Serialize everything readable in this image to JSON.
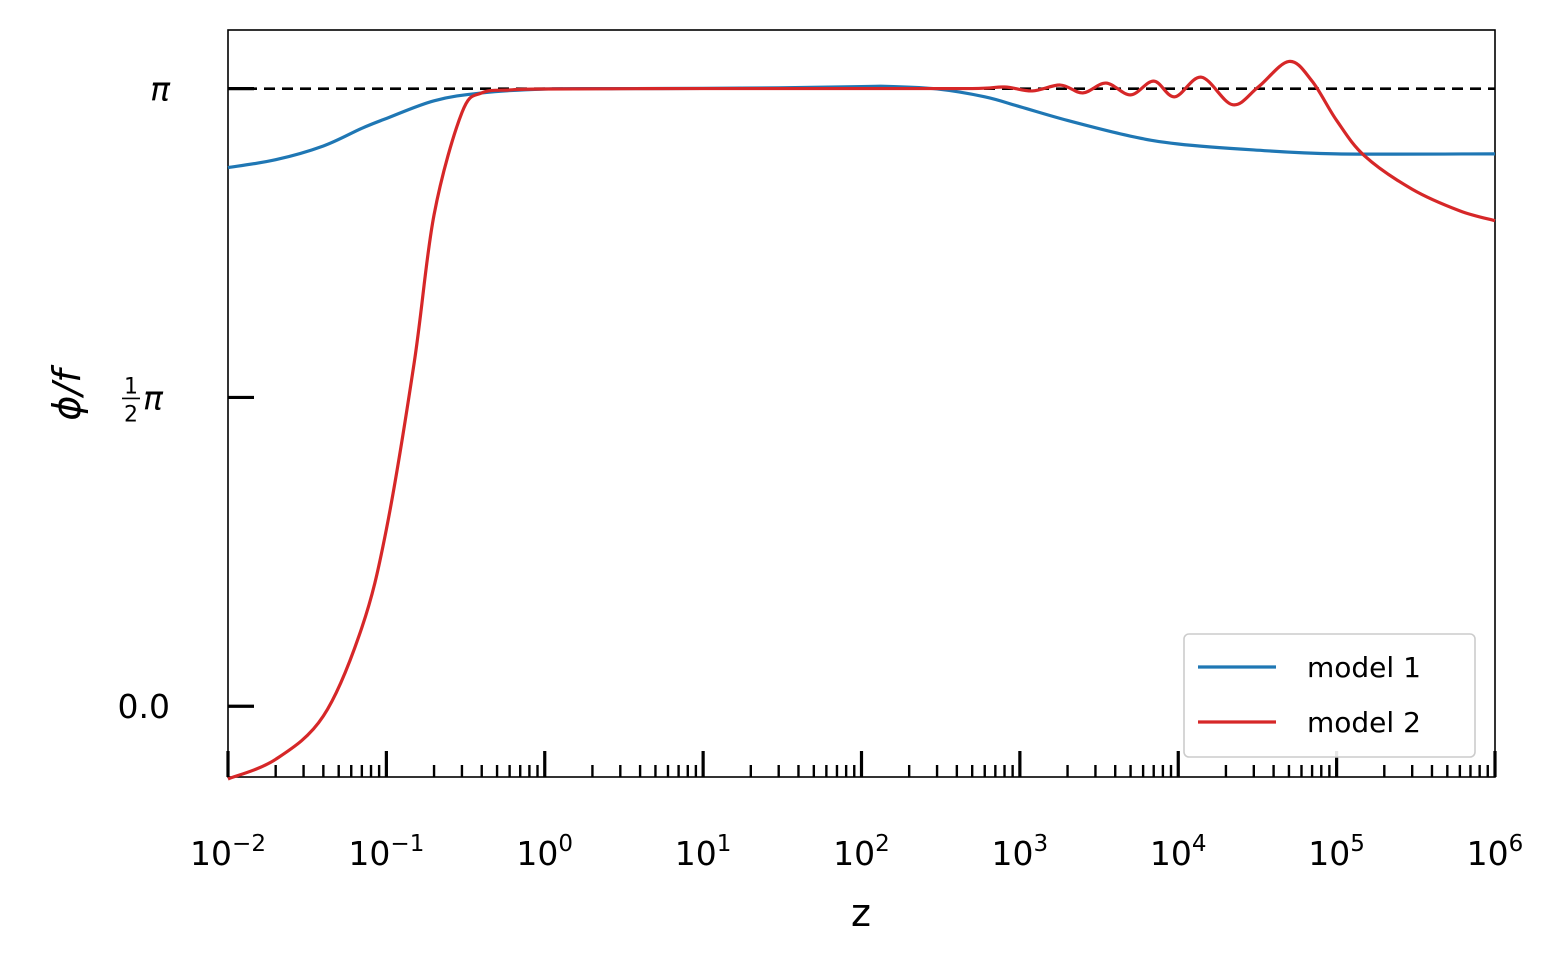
{
  "chart_data": {
    "type": "line",
    "xlabel": "z",
    "ylabel": "ϕ/f",
    "xscale": "log",
    "xlim": [
      0.01,
      1000000
    ],
    "ylim": [
      -0.36,
      3.44
    ],
    "grid": false,
    "legend_position": "bottom-right",
    "x_ticks": [
      {
        "base": "10",
        "exp": "−2"
      },
      {
        "base": "10",
        "exp": "−1"
      },
      {
        "base": "10",
        "exp": "0"
      },
      {
        "base": "10",
        "exp": "1"
      },
      {
        "base": "10",
        "exp": "2"
      },
      {
        "base": "10",
        "exp": "3"
      },
      {
        "base": "10",
        "exp": "4"
      },
      {
        "base": "10",
        "exp": "5"
      },
      {
        "base": "10",
        "exp": "6"
      }
    ],
    "y_ticks": [
      {
        "value": 0.0,
        "label": "0.0"
      },
      {
        "value": 1.5708,
        "label_num": "1",
        "label_den": "2",
        "label_sym": "π"
      },
      {
        "value": 3.1416,
        "label": "π"
      }
    ],
    "reference_line": {
      "y": 3.1416,
      "style": "dashed",
      "color": "#000000"
    },
    "series": [
      {
        "name": "model 1",
        "color": "#1f77b4",
        "points": [
          [
            0.01,
            2.74
          ],
          [
            0.02,
            2.78
          ],
          [
            0.04,
            2.85
          ],
          [
            0.07,
            2.94
          ],
          [
            0.1,
            2.99
          ],
          [
            0.2,
            3.08
          ],
          [
            0.4,
            3.12
          ],
          [
            1,
            3.14
          ],
          [
            3,
            3.142
          ],
          [
            10,
            3.143
          ],
          [
            30,
            3.146
          ],
          [
            100,
            3.152
          ],
          [
            150,
            3.153
          ],
          [
            300,
            3.14
          ],
          [
            600,
            3.1
          ],
          [
            1000,
            3.05
          ],
          [
            2000,
            2.98
          ],
          [
            5000,
            2.9
          ],
          [
            10000,
            2.86
          ],
          [
            30000,
            2.83
          ],
          [
            100000,
            2.81
          ],
          [
            1000000,
            2.81
          ]
        ]
      },
      {
        "name": "model 2",
        "color": "#d62728",
        "points": [
          [
            0.01,
            -0.37
          ],
          [
            0.02,
            -0.27
          ],
          [
            0.04,
            -0.05
          ],
          [
            0.07,
            0.4
          ],
          [
            0.1,
            0.9
          ],
          [
            0.15,
            1.75
          ],
          [
            0.2,
            2.5
          ],
          [
            0.3,
            3.02
          ],
          [
            0.4,
            3.12
          ],
          [
            0.6,
            3.135
          ],
          [
            1,
            3.14
          ],
          [
            10,
            3.142
          ],
          [
            100,
            3.142
          ],
          [
            500,
            3.142
          ],
          [
            800,
            3.15
          ],
          [
            1200,
            3.13
          ],
          [
            1800,
            3.16
          ],
          [
            2500,
            3.12
          ],
          [
            3500,
            3.17
          ],
          [
            5000,
            3.11
          ],
          [
            7000,
            3.18
          ],
          [
            9500,
            3.1
          ],
          [
            14000,
            3.2
          ],
          [
            22000,
            3.06
          ],
          [
            32000,
            3.15
          ],
          [
            50000,
            3.28
          ],
          [
            70000,
            3.18
          ],
          [
            100000,
            2.98
          ],
          [
            150000,
            2.8
          ],
          [
            300000,
            2.63
          ],
          [
            600000,
            2.52
          ],
          [
            1000000,
            2.47
          ]
        ]
      }
    ]
  }
}
